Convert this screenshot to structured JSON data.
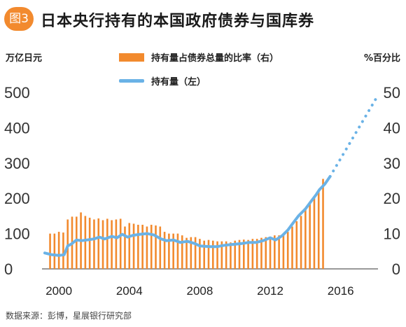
{
  "badge": "图3",
  "chart_data": {
    "type": "bar",
    "title": "日本央行持有的本国政府债券与国库券",
    "left_unit": "万亿日元",
    "right_unit": "%百分比",
    "legend": [
      "持有量占债券总量的比率（右）",
      "持有量（左）"
    ],
    "source": "数据来源：彭博，星展银行研究部",
    "y_left": {
      "lim": [
        0,
        500
      ],
      "ticks": [
        "0",
        "100",
        "200",
        "300",
        "400",
        "500"
      ]
    },
    "y_right": {
      "lim": [
        0,
        50
      ],
      "ticks": [
        "0",
        "10",
        "20",
        "30",
        "40",
        "50"
      ]
    },
    "x": {
      "lim": [
        1999.2,
        2018.0
      ],
      "ticks": [
        "2000",
        "2004",
        "2008",
        "2012",
        "2016"
      ]
    },
    "series": [
      {
        "name": "持有量占债券总量的比率（右）",
        "axis": "right",
        "type": "bar",
        "x": [
          1999.5,
          1999.75,
          2000.0,
          2000.25,
          2000.5,
          2000.75,
          2001.0,
          2001.25,
          2001.5,
          2001.75,
          2002.0,
          2002.25,
          2002.5,
          2002.75,
          2003.0,
          2003.25,
          2003.5,
          2003.75,
          2004.0,
          2004.25,
          2004.5,
          2004.75,
          2005.0,
          2005.25,
          2005.5,
          2005.75,
          2006.0,
          2006.25,
          2006.5,
          2006.75,
          2007.0,
          2007.25,
          2007.5,
          2007.75,
          2008.0,
          2008.25,
          2008.5,
          2008.75,
          2009.0,
          2009.25,
          2009.5,
          2009.75,
          2010.0,
          2010.25,
          2010.5,
          2010.75,
          2011.0,
          2011.25,
          2011.5,
          2011.75,
          2012.0,
          2012.25,
          2012.5,
          2012.75,
          2013.0,
          2013.25,
          2013.5,
          2013.75,
          2014.0,
          2014.25,
          2014.5,
          2014.75,
          2015.0
        ],
        "values": [
          10.0,
          10.0,
          10.5,
          10.3,
          14.0,
          14.8,
          14.8,
          16.0,
          15.0,
          14.5,
          14.0,
          14.3,
          13.8,
          14.2,
          13.8,
          14.0,
          14.2,
          12.0,
          13.0,
          12.8,
          12.5,
          12.5,
          12.0,
          12.5,
          12.3,
          12.0,
          10.5,
          10.0,
          10.0,
          10.0,
          9.5,
          8.8,
          9.0,
          9.0,
          8.5,
          8.0,
          8.2,
          8.0,
          7.8,
          7.8,
          7.8,
          7.5,
          8.0,
          8.2,
          8.3,
          8.2,
          8.5,
          8.5,
          8.8,
          9.0,
          9.0,
          9.5,
          9.5,
          10.0,
          10.5,
          12.0,
          13.5,
          15.0,
          17.0,
          18.5,
          20.0,
          22.0,
          25.5
        ]
      },
      {
        "name": "持有量（左）",
        "axis": "left",
        "type": "line",
        "x": [
          1999.2,
          1999.6,
          2000.0,
          2000.3,
          2000.5,
          2000.7,
          2001.0,
          2001.3,
          2001.6,
          2002.0,
          2002.3,
          2002.6,
          2003.0,
          2003.3,
          2003.6,
          2003.9,
          2004.2,
          2004.6,
          2005.0,
          2005.4,
          2005.8,
          2006.1,
          2006.5,
          2006.9,
          2007.3,
          2007.7,
          2008.0,
          2008.3,
          2008.6,
          2009.0,
          2009.3,
          2009.6,
          2010.0,
          2010.4,
          2010.8,
          2011.2,
          2011.6,
          2012.0,
          2012.3,
          2012.5,
          2012.7,
          2013.0,
          2013.3,
          2013.6,
          2014.0,
          2014.3,
          2014.6,
          2014.8,
          2015.1,
          2015.4
        ],
        "values": [
          45,
          40,
          38,
          40,
          65,
          70,
          82,
          80,
          82,
          85,
          90,
          85,
          92,
          88,
          98,
          90,
          95,
          98,
          100,
          96,
          85,
          80,
          82,
          75,
          78,
          72,
          65,
          64,
          63,
          63,
          66,
          68,
          70,
          72,
          75,
          75,
          80,
          88,
          82,
          88,
          95,
          110,
          130,
          150,
          170,
          190,
          210,
          225,
          240,
          262
        ]
      }
    ],
    "projection": {
      "x": [
        2015.4,
        2018.0
      ],
      "values": [
        262,
        482
      ],
      "style": "dotted"
    }
  }
}
